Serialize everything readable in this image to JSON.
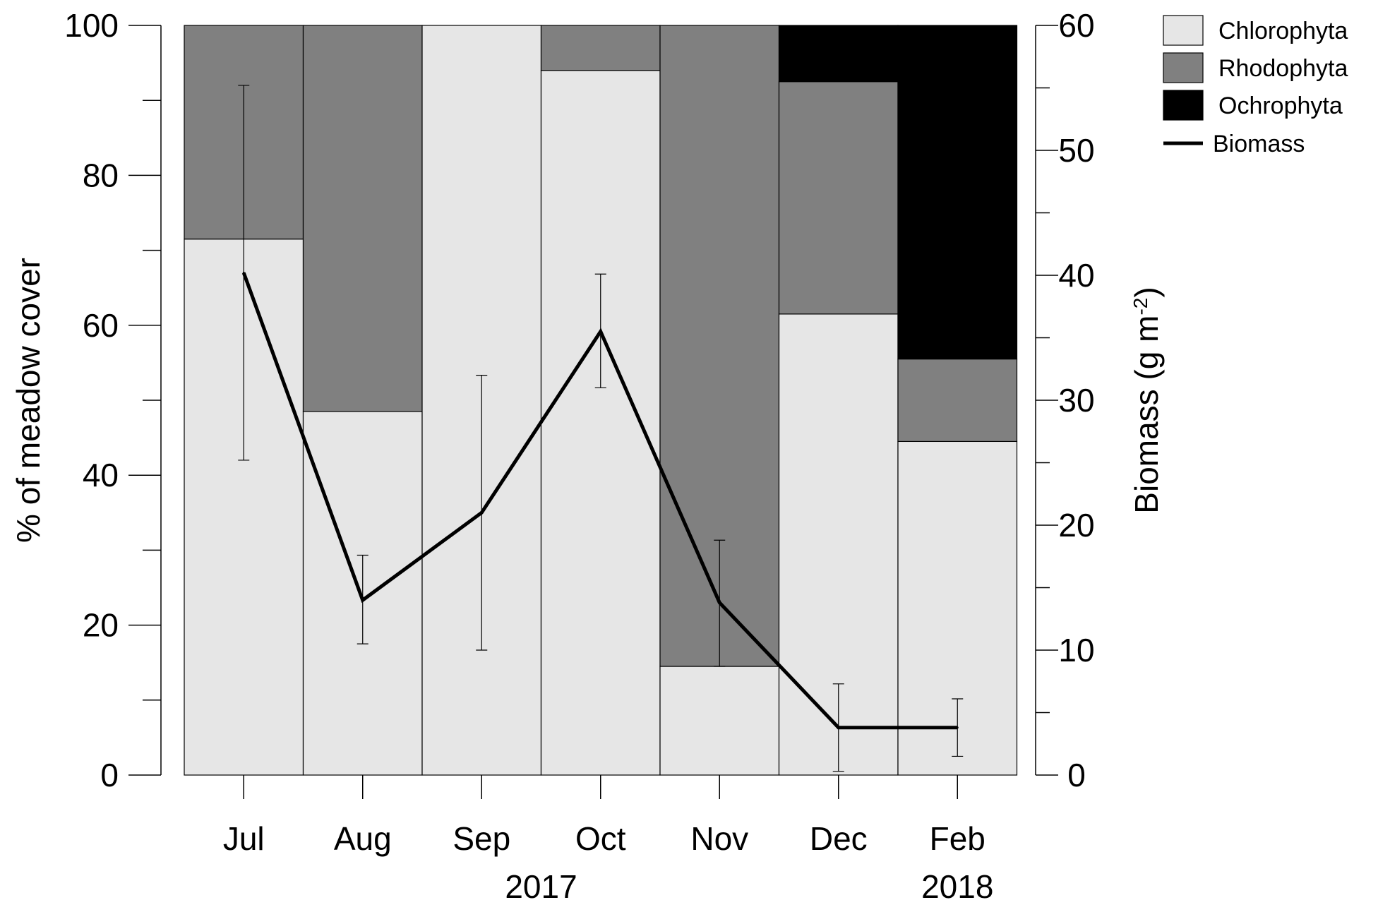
{
  "chart_data": {
    "type": "bar",
    "stacked": true,
    "categories": [
      "Jul",
      "Aug",
      "Sep",
      "Oct",
      "Nov",
      "Dec",
      "Feb"
    ],
    "year_labels": [
      "2017",
      "2018"
    ],
    "series": [
      {
        "name": "Chlorophyta",
        "values": [
          71.5,
          48.5,
          100,
          94,
          14.5,
          61.5,
          44.5
        ],
        "color": "#e6e6e6"
      },
      {
        "name": "Rhodophyta",
        "values": [
          28.5,
          51.5,
          0,
          6,
          85.5,
          31,
          11
        ],
        "color": "#808080"
      },
      {
        "name": "Ochrophyta",
        "values": [
          0,
          0,
          0,
          0,
          0,
          7.5,
          44.5
        ],
        "color": "#000000"
      }
    ],
    "line_series": {
      "name": "Biomass",
      "axis": "right",
      "values": [
        40.2,
        14,
        21,
        35.5,
        13.8,
        3.8,
        3.8
      ],
      "error_low": [
        25.2,
        10.5,
        10,
        31,
        8.7,
        0.3,
        1.5
      ],
      "error_high": [
        55.2,
        17.6,
        32,
        40.1,
        18.8,
        7.3,
        6.1
      ],
      "color": "#000000"
    },
    "ylabel": "% of meadow cover",
    "y2label_main": "Biomass (g m",
    "y2label_sup": "-2",
    "y2label_end": ")",
    "ylim": [
      0,
      100
    ],
    "y2lim": [
      0,
      60
    ],
    "yticks": [
      "0",
      "20",
      "40",
      "60",
      "80",
      "100"
    ],
    "y2ticks": [
      "0",
      "10",
      "20",
      "30",
      "40",
      "50",
      "60"
    ],
    "legend_position": "top-right",
    "grid": false
  }
}
